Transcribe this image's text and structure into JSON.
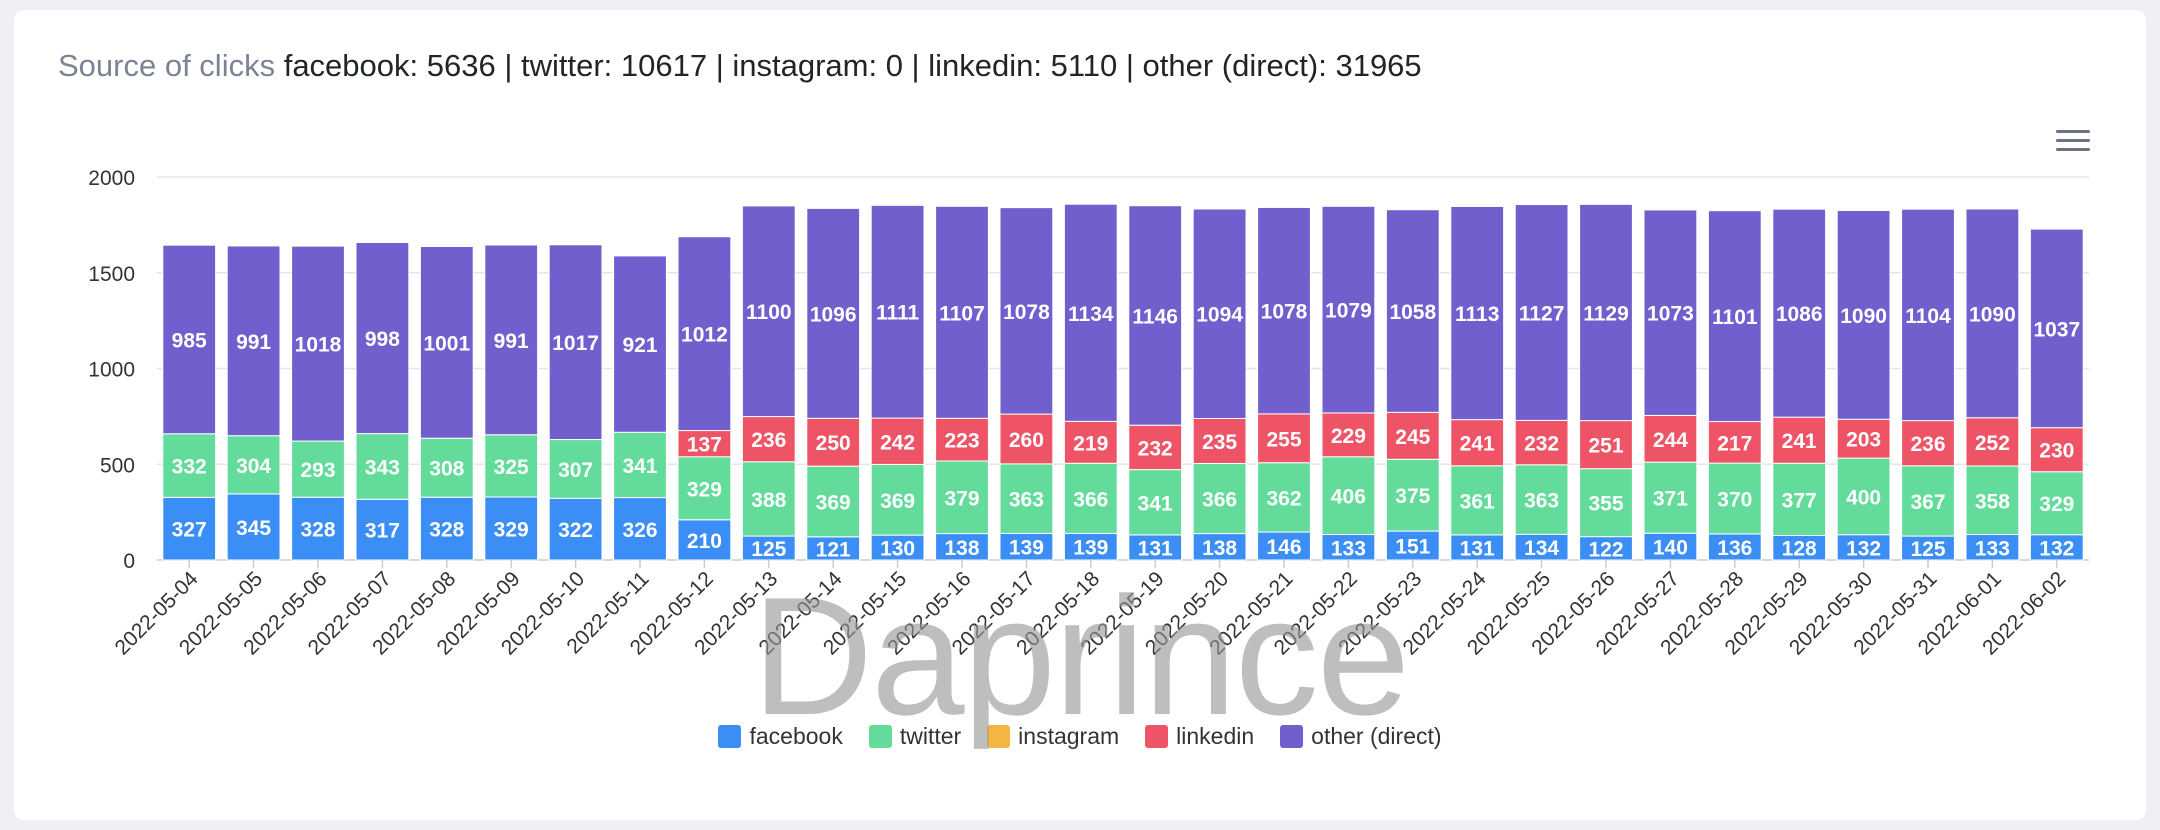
{
  "title": {
    "label": "Source of clicks",
    "summary": "facebook: 5636 | twitter: 10617 | instagram: 0 | linkedin: 5110 | other (direct): 31965"
  },
  "watermark": "Daprince",
  "menu_icon": "hamburger-menu-icon",
  "colors": {
    "facebook": "#3a8ef5",
    "twitter": "#63dc9b",
    "instagram": "#f5b541",
    "linkedin": "#ee5466",
    "other": "#705fcd"
  },
  "chart_data": {
    "type": "bar",
    "stacked": true,
    "title": "Source of clicks",
    "ylim": [
      0,
      2000
    ],
    "yticks": [
      0,
      500,
      1000,
      1500,
      2000
    ],
    "grid": true,
    "legend_position": "bottom-center",
    "categories": [
      "2022-05-04",
      "2022-05-05",
      "2022-05-06",
      "2022-05-07",
      "2022-05-08",
      "2022-05-09",
      "2022-05-10",
      "2022-05-11",
      "2022-05-12",
      "2022-05-13",
      "2022-05-14",
      "2022-05-15",
      "2022-05-16",
      "2022-05-17",
      "2022-05-18",
      "2022-05-19",
      "2022-05-20",
      "2022-05-21",
      "2022-05-22",
      "2022-05-23",
      "2022-05-24",
      "2022-05-25",
      "2022-05-26",
      "2022-05-27",
      "2022-05-28",
      "2022-05-29",
      "2022-05-30",
      "2022-05-31",
      "2022-06-01",
      "2022-06-02"
    ],
    "series": [
      {
        "name": "facebook",
        "color": "#3a8ef5",
        "values": [
          327,
          345,
          328,
          317,
          328,
          329,
          322,
          326,
          210,
          125,
          121,
          130,
          138,
          139,
          139,
          131,
          138,
          146,
          133,
          151,
          131,
          134,
          122,
          140,
          136,
          128,
          132,
          125,
          133,
          132
        ]
      },
      {
        "name": "twitter",
        "color": "#63dc9b",
        "values": [
          332,
          304,
          293,
          343,
          308,
          325,
          307,
          341,
          329,
          388,
          369,
          369,
          379,
          363,
          366,
          341,
          366,
          362,
          406,
          375,
          361,
          363,
          355,
          371,
          370,
          377,
          400,
          367,
          358,
          329
        ]
      },
      {
        "name": "instagram",
        "color": "#f5b541",
        "values": [
          0,
          0,
          0,
          0,
          0,
          0,
          0,
          0,
          0,
          0,
          0,
          0,
          0,
          0,
          0,
          0,
          0,
          0,
          0,
          0,
          0,
          0,
          0,
          0,
          0,
          0,
          0,
          0,
          0,
          0
        ]
      },
      {
        "name": "linkedin",
        "color": "#ee5466",
        "values": [
          0,
          0,
          0,
          0,
          0,
          0,
          0,
          0,
          137,
          236,
          250,
          242,
          223,
          260,
          219,
          232,
          235,
          255,
          229,
          245,
          241,
          232,
          251,
          244,
          217,
          241,
          203,
          236,
          252,
          230
        ]
      },
      {
        "name": "other (direct)",
        "color": "#705fcd",
        "values": [
          985,
          991,
          1018,
          998,
          1001,
          991,
          1017,
          921,
          1012,
          1100,
          1096,
          1111,
          1107,
          1078,
          1134,
          1146,
          1094,
          1078,
          1079,
          1058,
          1113,
          1127,
          1129,
          1073,
          1101,
          1086,
          1090,
          1104,
          1090,
          1037
        ]
      }
    ]
  }
}
